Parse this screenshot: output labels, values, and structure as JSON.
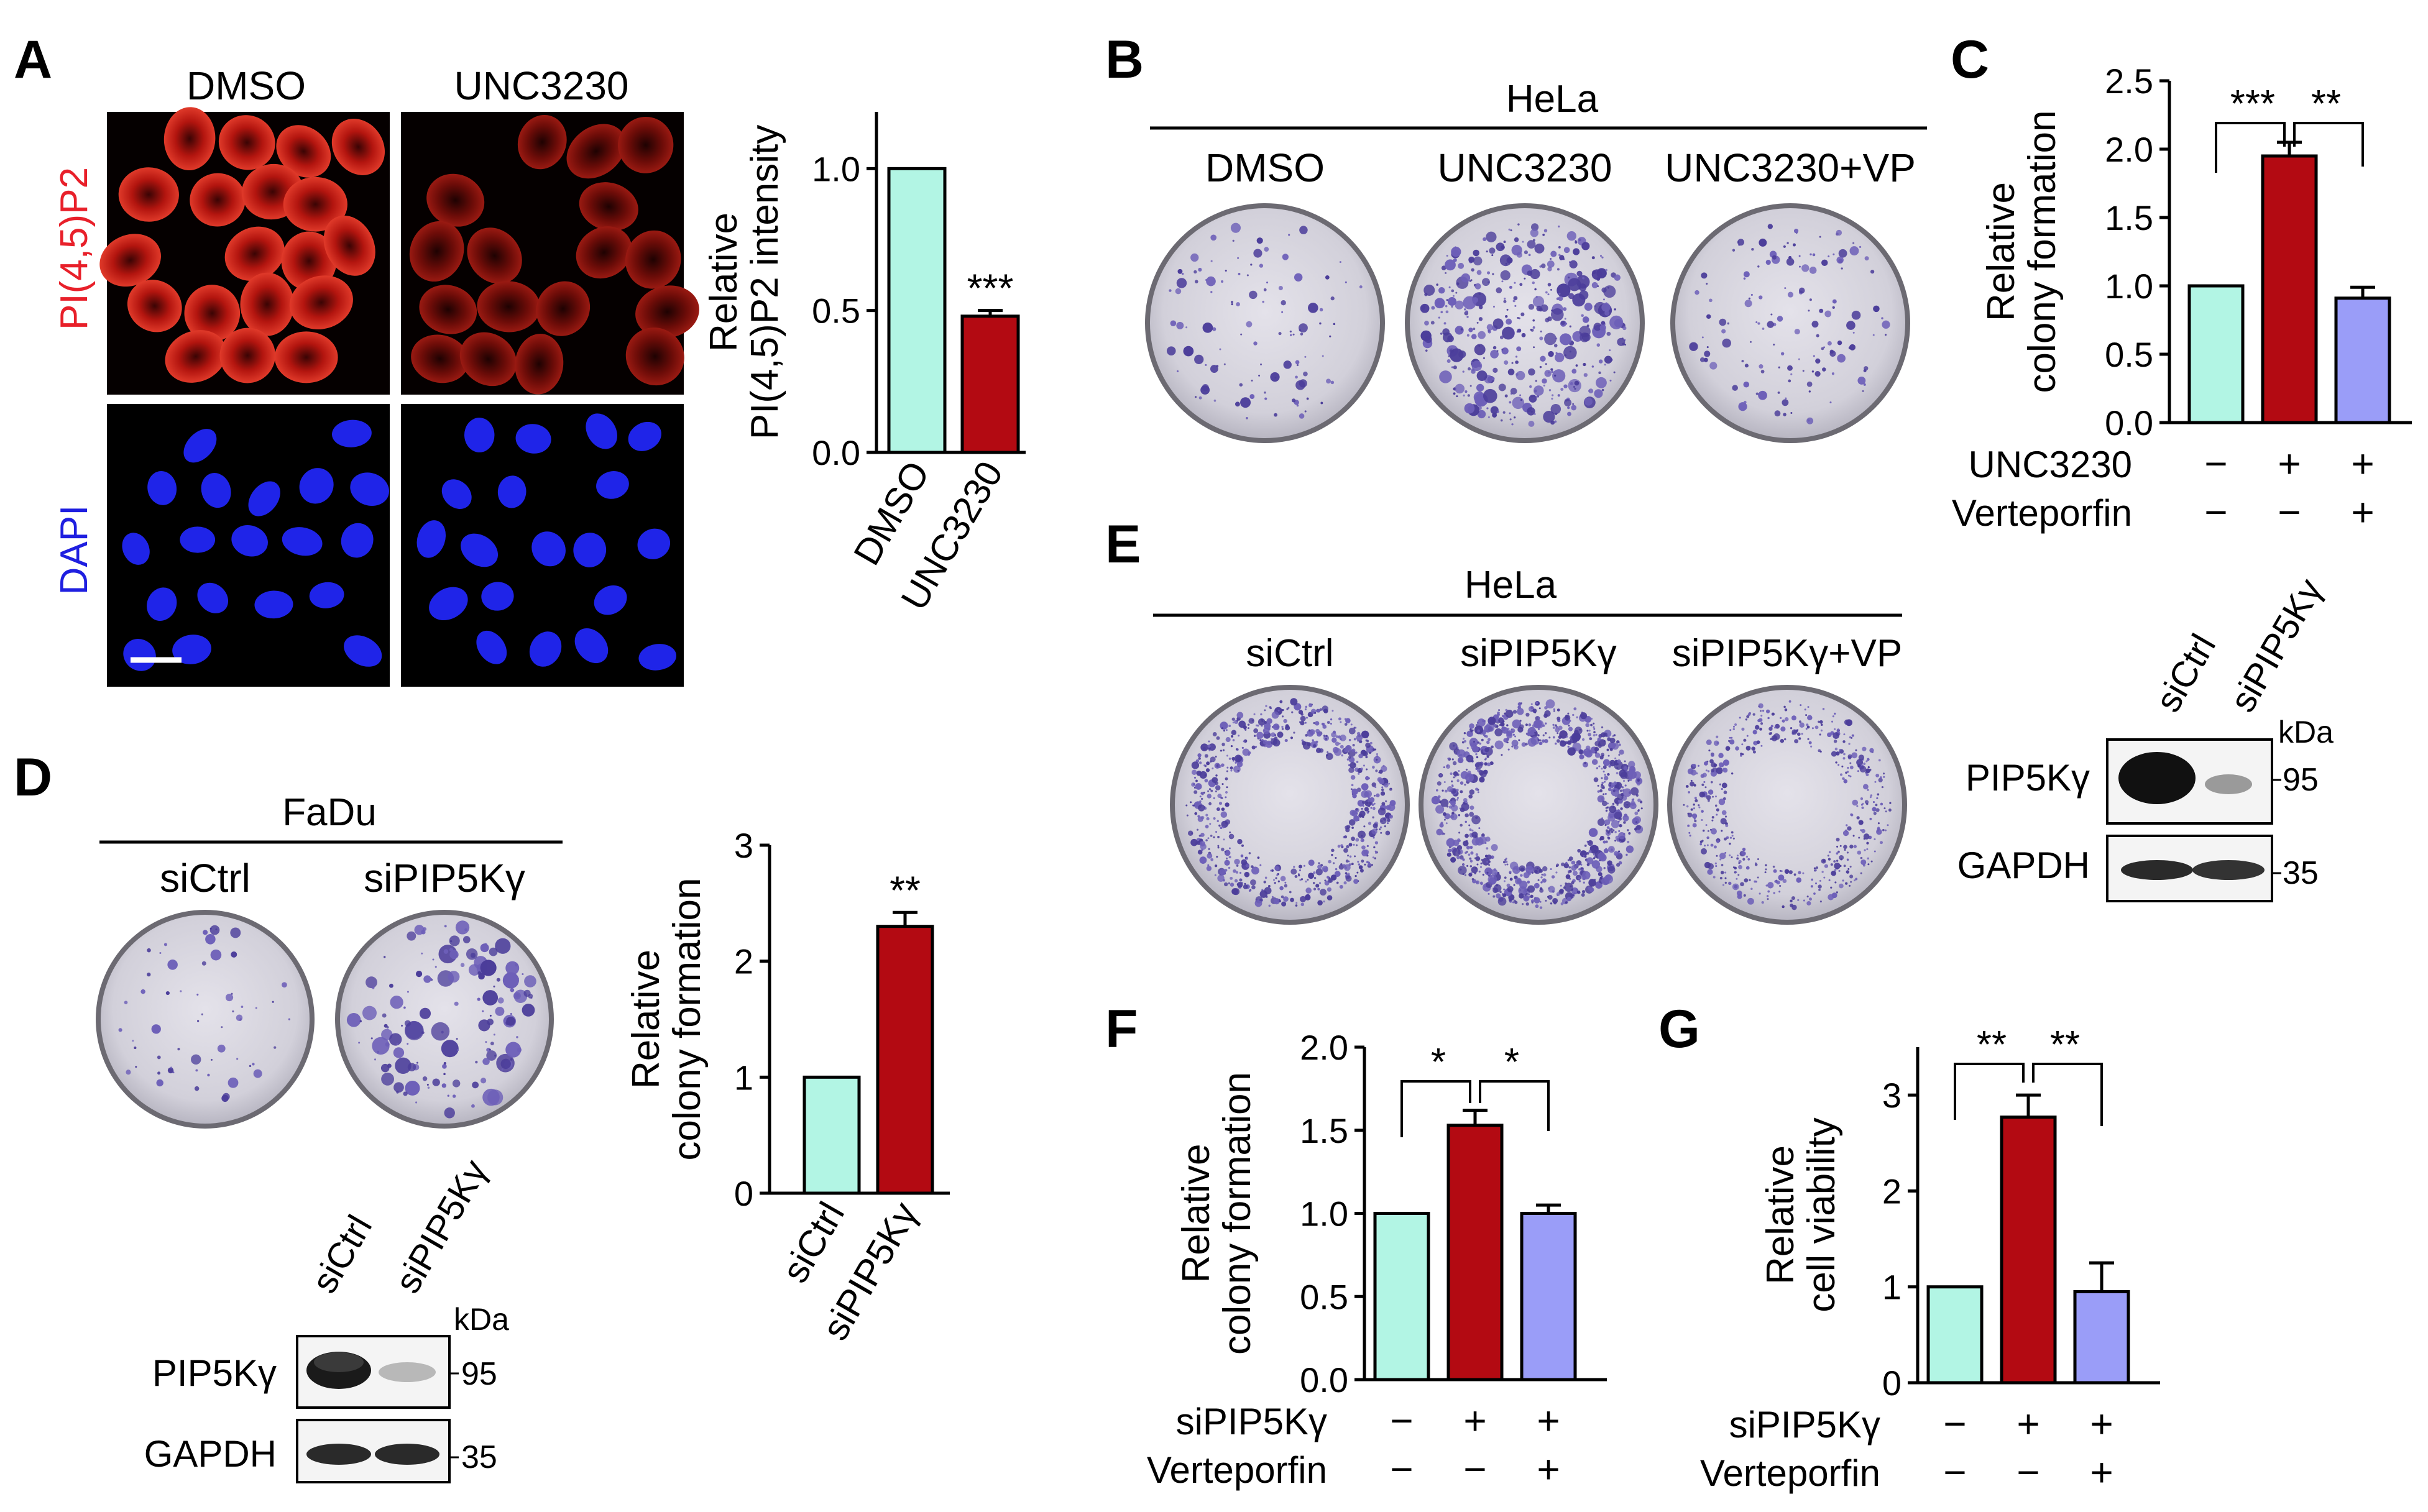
{
  "panels": {
    "A": {
      "letter": "A",
      "col_labels": [
        "DMSO",
        "UNC3230"
      ],
      "row_labels": [
        "PI(4,5)P2",
        "DAPI"
      ]
    },
    "B": {
      "letter": "B",
      "group": "HeLa",
      "col_labels": [
        "DMSO",
        "UNC3230",
        "UNC3230+VP"
      ]
    },
    "C": {
      "letter": "C"
    },
    "D": {
      "letter": "D",
      "group": "FaDu",
      "col_labels": [
        "siCtrl",
        "siPIP5Kγ"
      ],
      "blot": {
        "lanes": [
          "siCtrl",
          "siPIP5Kγ"
        ],
        "kda": "kDa",
        "rows": [
          {
            "label": "PIP5Kγ",
            "mw": "95"
          },
          {
            "label": "GAPDH",
            "mw": "35"
          }
        ]
      }
    },
    "E": {
      "letter": "E",
      "group": "HeLa",
      "col_labels": [
        "siCtrl",
        "siPIP5Kγ",
        "siPIP5Kγ+VP"
      ],
      "blot": {
        "lanes": [
          "siCtrl",
          "siPIP5Kγ"
        ],
        "kda": "kDa",
        "rows": [
          {
            "label": "PIP5Kγ",
            "mw": "95"
          },
          {
            "label": "GAPDH",
            "mw": "35"
          }
        ]
      }
    },
    "F": {
      "letter": "F"
    },
    "G": {
      "letter": "G"
    }
  },
  "colors": {
    "pi45p2_label": "#e8202a",
    "dapi_label": "#1f1fe0",
    "bar_control": "#b2f5e4",
    "bar_treated": "#b30a12",
    "bar_vp": "#9a9df8"
  },
  "chart_data": [
    {
      "panel": "A",
      "type": "bar",
      "categories": [
        "DMSO",
        "UNC3230"
      ],
      "values": [
        1.0,
        0.48
      ],
      "errors": [
        0,
        0.02
      ],
      "ylabel": [
        "Relative",
        "PI(4,5)P2 intensity"
      ],
      "ylim": [
        0,
        1.2
      ],
      "yticks": [
        "0.0",
        "0.5",
        "1.0"
      ],
      "significance": [
        "",
        "***"
      ],
      "brackets": []
    },
    {
      "panel": "C",
      "type": "bar",
      "categories": [
        "",
        "",
        ""
      ],
      "values": [
        1.0,
        1.95,
        0.91
      ],
      "errors": [
        0,
        0.1,
        0.08
      ],
      "ylabel": [
        "Relative",
        "colony formation"
      ],
      "ylim": [
        0,
        2.5
      ],
      "yticks": [
        "0.0",
        "0.5",
        "1.0",
        "1.5",
        "2.0",
        "2.5"
      ],
      "significance": [],
      "brackets": [
        {
          "from": 0,
          "to": 1,
          "label": "***"
        },
        {
          "from": 1,
          "to": 2,
          "label": "**"
        }
      ],
      "conditions": [
        {
          "label": "UNC3230",
          "marks": [
            "−",
            "+",
            "+"
          ]
        },
        {
          "label": "Verteporfin",
          "marks": [
            "−",
            "−",
            "+"
          ]
        }
      ]
    },
    {
      "panel": "D",
      "type": "bar",
      "categories": [
        "siCtrl",
        "siPIP5Kγ"
      ],
      "values": [
        1.0,
        2.3
      ],
      "errors": [
        0,
        0.12
      ],
      "ylabel": [
        "Relative",
        "colony formation"
      ],
      "ylim": [
        0,
        3
      ],
      "yticks": [
        "0",
        "1",
        "2",
        "3"
      ],
      "significance": [
        "",
        "**"
      ],
      "brackets": []
    },
    {
      "panel": "F",
      "type": "bar",
      "categories": [
        "",
        "",
        ""
      ],
      "values": [
        1.0,
        1.53,
        1.0
      ],
      "errors": [
        0,
        0.09,
        0.05
      ],
      "ylabel": [
        "Relative",
        "colony formation"
      ],
      "ylim": [
        0,
        2.0
      ],
      "yticks": [
        "0.0",
        "0.5",
        "1.0",
        "1.5",
        "2.0"
      ],
      "significance": [],
      "brackets": [
        {
          "from": 0,
          "to": 1,
          "label": "*"
        },
        {
          "from": 1,
          "to": 2,
          "label": "*"
        }
      ],
      "conditions": [
        {
          "label": "siPIP5Kγ",
          "marks": [
            "−",
            "+",
            "+"
          ]
        },
        {
          "label": "Verteporfin",
          "marks": [
            "−",
            "−",
            "+"
          ]
        }
      ]
    },
    {
      "panel": "G",
      "type": "bar",
      "categories": [
        "",
        "",
        ""
      ],
      "values": [
        1.0,
        2.77,
        0.95
      ],
      "errors": [
        0,
        0.23,
        0.3
      ],
      "ylabel": [
        "Relative",
        "cell viability"
      ],
      "ylim": [
        0,
        3.5
      ],
      "yticks": [
        "0",
        "1",
        "2",
        "3"
      ],
      "significance": [],
      "brackets": [
        {
          "from": 0,
          "to": 1,
          "label": "**"
        },
        {
          "from": 1,
          "to": 2,
          "label": "**"
        }
      ],
      "conditions": [
        {
          "label": "siPIP5Kγ",
          "marks": [
            "−",
            "+",
            "+"
          ]
        },
        {
          "label": "Verteporfin",
          "marks": [
            "−",
            "−",
            "+"
          ]
        }
      ]
    }
  ]
}
